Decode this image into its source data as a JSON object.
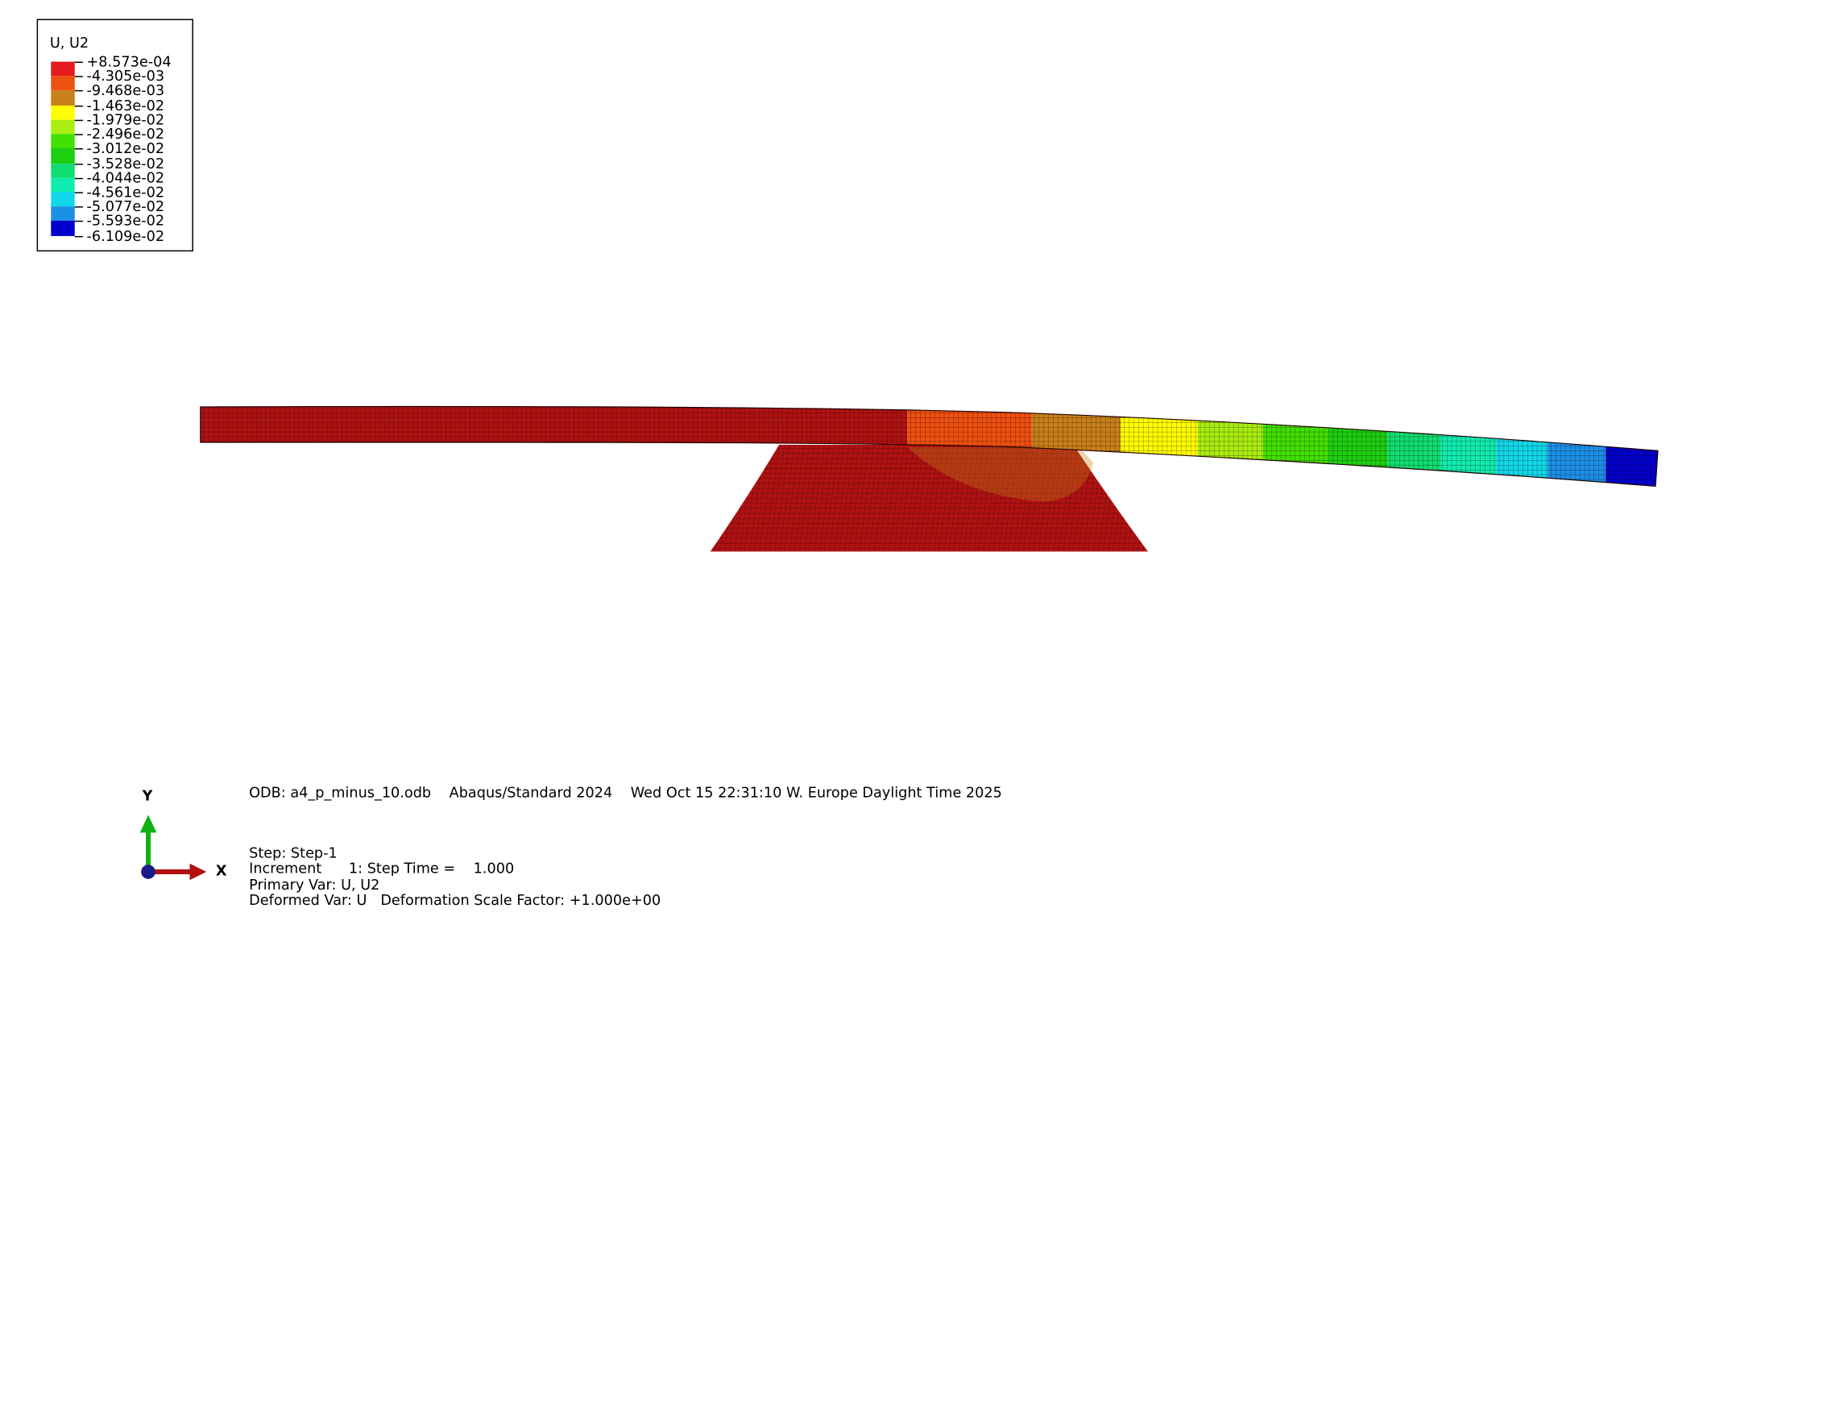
{
  "legend": {
    "title": "U, U2",
    "levels": [
      {
        "label": "+8.573e-04",
        "color": "#e41a1c"
      },
      {
        "label": "-4.305e-03",
        "color": "#ee5010"
      },
      {
        "label": "-9.468e-03",
        "color": "#c8801a"
      },
      {
        "label": "-1.463e-02",
        "color": "#ffff00"
      },
      {
        "label": "-1.979e-02",
        "color": "#a8ee10"
      },
      {
        "label": "-2.496e-02",
        "color": "#40e000"
      },
      {
        "label": "-3.012e-02",
        "color": "#1ccf10"
      },
      {
        "label": "-3.528e-02",
        "color": "#10dd70"
      },
      {
        "label": "-4.044e-02",
        "color": "#10ecb0"
      },
      {
        "label": "-4.561e-02",
        "color": "#10d8ea"
      },
      {
        "label": "-5.077e-02",
        "color": "#1a90e6"
      },
      {
        "label": "-5.593e-02",
        "color": "#1f55dd"
      },
      {
        "label": "-6.109e-02",
        "color": "#0000ee"
      }
    ],
    "bottom_color": "#0000cc"
  },
  "info": {
    "header": "ODB: a4_p_minus_10.odb    Abaqus/Standard 2024    Wed Oct 15 22:31:10 W. Europe Daylight Time 2025",
    "step": "Step: Step-1",
    "increment": "Increment      1: Step Time =    1.000",
    "primary_var": "Primary Var: U, U2",
    "deformed_var": "Deformed Var: U   Deformation Scale Factor: +1.000e+00"
  },
  "triad": {
    "x_label": "X",
    "y_label": "Y",
    "x_color": "#b01010",
    "y_color": "#10b010",
    "origin_color": "#1a1a8c"
  },
  "colors": {
    "support": "#b01212",
    "beam_base": "#b01212",
    "mesh_line": "#2a0000"
  }
}
